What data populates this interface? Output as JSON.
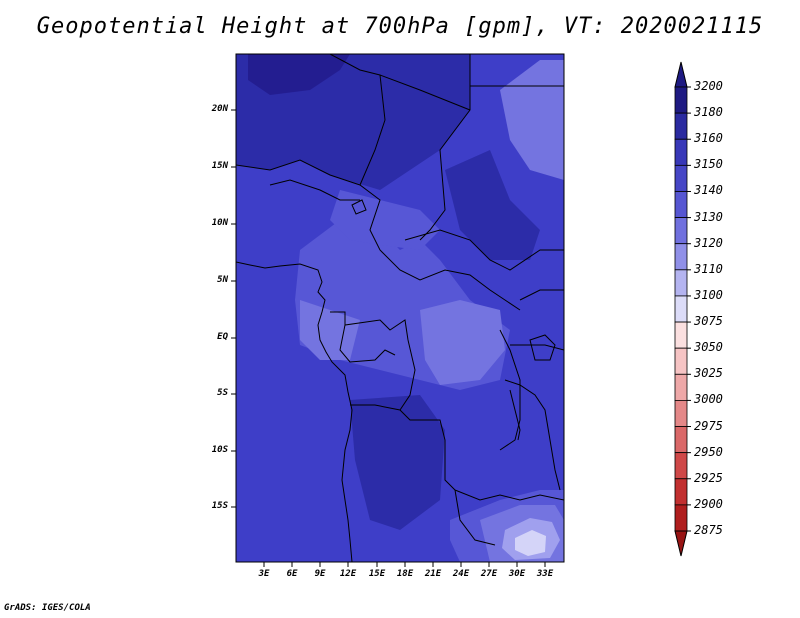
{
  "title": "Geopotential Height at 700hPa [gpm], VT: 2020021115",
  "footer": "GrADS: IGES/COLA",
  "map": {
    "lat_labels": [
      "20N",
      "15N",
      "10N",
      "5N",
      "EQ",
      "5S",
      "10S",
      "15S"
    ],
    "lon_labels": [
      "3E",
      "6E",
      "9E",
      "12E",
      "15E",
      "18E",
      "21E",
      "24E",
      "27E",
      "30E",
      "33E"
    ],
    "colors": {
      "base": "#3e3ec8",
      "dark": "#2c2ca8",
      "darker": "#231d90",
      "light": "#5757d6",
      "lighter": "#7474e0",
      "pale": "#a0a0ee",
      "palest": "#d4d4f8"
    }
  },
  "colorbar": {
    "levels": [
      "3200",
      "3180",
      "3160",
      "3150",
      "3140",
      "3130",
      "3120",
      "3110",
      "3100",
      "3075",
      "3050",
      "3025",
      "3000",
      "2975",
      "2950",
      "2925",
      "2900",
      "2875"
    ],
    "colors": [
      "#1e1a82",
      "#2a2aa0",
      "#3838b8",
      "#4646c6",
      "#5656d2",
      "#7070de",
      "#9090e8",
      "#b4b4f0",
      "#dcdcf8",
      "#fbe0e0",
      "#f6c4c4",
      "#eea8a8",
      "#e48888",
      "#da6868",
      "#cf4848",
      "#c23030",
      "#b01e1e",
      "#981414"
    ]
  }
}
